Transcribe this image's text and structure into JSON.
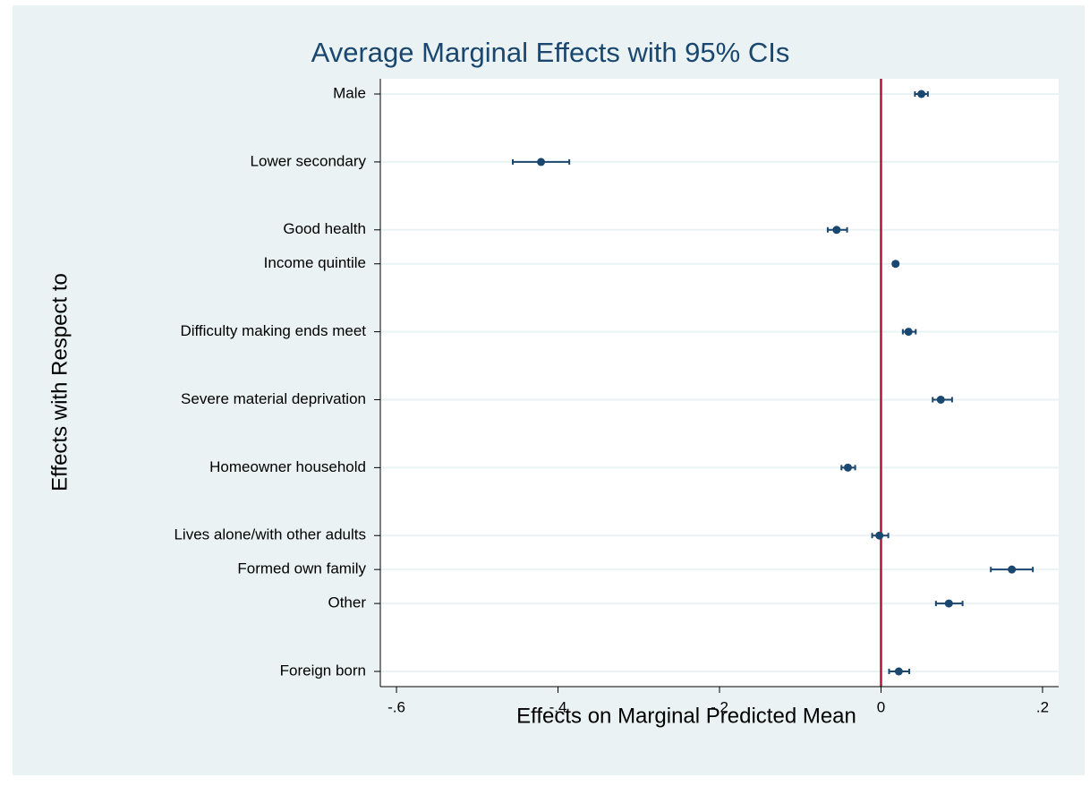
{
  "chart_data": {
    "type": "coefplot",
    "title": "Average Marginal Effects with 95% CIs",
    "x_label": "Effects on Marginal Predicted Mean",
    "y_label": "Effects with Respect to",
    "categories": [
      "Male",
      null,
      "Lower secondary",
      null,
      "Good health",
      "Income quintile",
      null,
      "Difficulty making ends meet",
      null,
      "Severe material deprivation",
      null,
      "Homeowner household",
      null,
      "Lives alone/with other adults",
      "Formed own family",
      "Other",
      null,
      "Foreign born"
    ],
    "values": [
      0.05,
      null,
      -0.421,
      null,
      -0.055,
      0.018,
      null,
      0.034,
      null,
      0.074,
      null,
      -0.041,
      null,
      -0.002,
      0.162,
      0.084,
      null,
      0.022
    ],
    "lower": [
      0.042,
      null,
      -0.456,
      null,
      -0.066,
      0.015,
      null,
      0.027,
      null,
      0.064,
      null,
      -0.049,
      null,
      -0.011,
      0.136,
      0.068,
      null,
      0.01
    ],
    "upper": [
      0.058,
      null,
      -0.386,
      null,
      -0.042,
      0.021,
      null,
      0.043,
      null,
      0.088,
      null,
      -0.032,
      null,
      0.009,
      0.188,
      0.101,
      null,
      0.035
    ],
    "color": "#1a476f",
    "xlim": [
      -0.62,
      0.22
    ],
    "xticks": [
      {
        "value": -0.6,
        "label": "-.6"
      },
      {
        "value": -0.4,
        "label": "-.4"
      },
      {
        "value": -0.2,
        "label": "-.2"
      },
      0,
      {
        "value": 0.2,
        "label": ".2"
      }
    ],
    "reference_line": {
      "value": 0,
      "color": "#b0163c"
    },
    "grid": true
  }
}
